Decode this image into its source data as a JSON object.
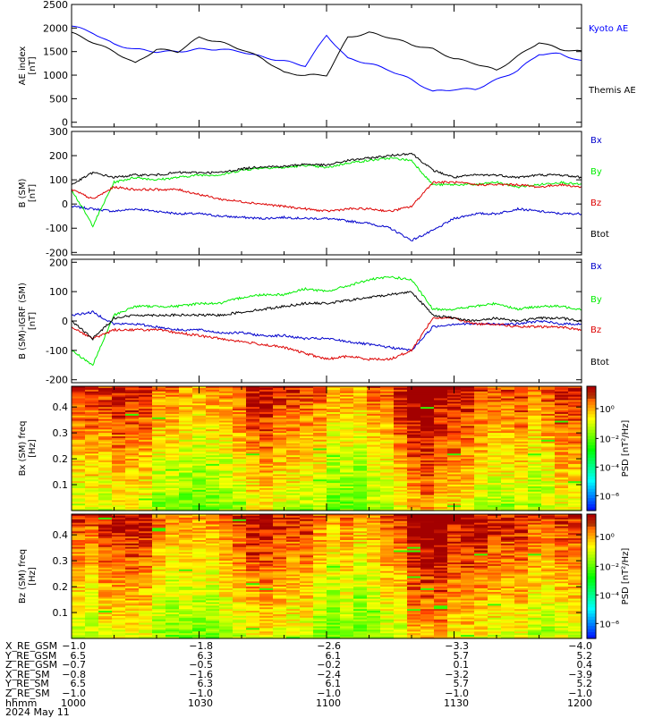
{
  "colors": {
    "kyoto": "#0000ff",
    "themis": "#000000",
    "bx": "#0000cc",
    "by": "#00ee00",
    "bz": "#dd0000",
    "btot": "#000000"
  },
  "chart_data": [
    {
      "type": "line",
      "ylabel": "AE index [nT]",
      "ylim": [
        -100,
        2500
      ],
      "yticks": [
        "0",
        "500",
        "1000",
        "1500",
        "2000",
        "2500"
      ],
      "grid": false,
      "legend_placement": "right",
      "x_time_range": [
        "2024-05-11 10:00",
        "2024-05-11 12:00"
      ],
      "series": [
        {
          "name": "Kyoto AE",
          "color": "#0000ff",
          "times": [
            "10:00",
            "10:05",
            "10:10",
            "10:15",
            "10:20",
            "10:25",
            "10:30",
            "10:35",
            "10:40",
            "10:45",
            "10:50",
            "10:55",
            "11:00",
            "11:05",
            "11:10",
            "11:15",
            "11:20",
            "11:25",
            "11:30",
            "11:35",
            "11:40",
            "11:45",
            "11:50",
            "11:55",
            "12:00"
          ],
          "values": [
            2050,
            1900,
            1650,
            1550,
            1500,
            1500,
            1550,
            1550,
            1500,
            1380,
            1300,
            1200,
            1850,
            1350,
            1250,
            1100,
            900,
            650,
            700,
            700,
            900,
            1100,
            1450,
            1450,
            1300
          ]
        },
        {
          "name": "Themis AE",
          "color": "#000000",
          "times": [
            "10:00",
            "10:05",
            "10:10",
            "10:15",
            "10:20",
            "10:25",
            "10:30",
            "10:35",
            "10:40",
            "10:45",
            "10:50",
            "10:55",
            "11:00",
            "11:05",
            "11:10",
            "11:15",
            "11:20",
            "11:25",
            "11:30",
            "11:35",
            "11:40",
            "11:45",
            "11:50",
            "11:55",
            "12:00"
          ],
          "values": [
            1900,
            1700,
            1500,
            1250,
            1550,
            1500,
            1800,
            1700,
            1550,
            1350,
            1050,
            1000,
            1000,
            1800,
            1900,
            1800,
            1650,
            1550,
            1350,
            1250,
            1100,
            1400,
            1700,
            1550,
            1500
          ]
        }
      ]
    },
    {
      "type": "line",
      "ylabel": "B (SM) [nT]",
      "ylim": [
        -210,
        300
      ],
      "yticks": [
        "-200",
        "-100",
        "0",
        "100",
        "200",
        "300"
      ],
      "grid": false,
      "legend_placement": "right",
      "x_time_range": [
        "2024-05-11 10:00",
        "2024-05-11 12:00"
      ],
      "series": [
        {
          "name": "Bx",
          "color": "#0000cc",
          "times": [
            "10:00",
            "10:05",
            "10:10",
            "10:15",
            "10:20",
            "10:25",
            "10:30",
            "10:35",
            "10:40",
            "10:45",
            "10:50",
            "10:55",
            "11:00",
            "11:05",
            "11:10",
            "11:15",
            "11:20",
            "11:25",
            "11:30",
            "11:35",
            "11:40",
            "11:45",
            "11:50",
            "11:55",
            "12:00"
          ],
          "values": [
            -10,
            -20,
            -30,
            -20,
            -30,
            -40,
            -40,
            -50,
            -55,
            -60,
            -55,
            -60,
            -60,
            -70,
            -80,
            -100,
            -150,
            -110,
            -60,
            -40,
            -40,
            -20,
            -30,
            -40,
            -40
          ]
        },
        {
          "name": "By",
          "color": "#00ee00",
          "times": [
            "10:00",
            "10:05",
            "10:10",
            "10:15",
            "10:20",
            "10:25",
            "10:30",
            "10:35",
            "10:40",
            "10:45",
            "10:50",
            "10:55",
            "11:00",
            "11:05",
            "11:10",
            "11:15",
            "11:20",
            "11:25",
            "11:30",
            "11:35",
            "11:40",
            "11:45",
            "11:50",
            "11:55",
            "12:00"
          ],
          "values": [
            60,
            -90,
            90,
            110,
            100,
            110,
            120,
            120,
            140,
            150,
            150,
            160,
            150,
            170,
            180,
            190,
            180,
            80,
            80,
            80,
            90,
            70,
            80,
            90,
            80
          ]
        },
        {
          "name": "Bz",
          "color": "#dd0000",
          "times": [
            "10:00",
            "10:05",
            "10:10",
            "10:15",
            "10:20",
            "10:25",
            "10:30",
            "10:35",
            "10:40",
            "10:45",
            "10:50",
            "10:55",
            "11:00",
            "11:05",
            "11:10",
            "11:15",
            "11:20",
            "11:25",
            "11:30",
            "11:35",
            "11:40",
            "11:45",
            "11:50",
            "11:55",
            "12:00"
          ],
          "values": [
            60,
            20,
            70,
            60,
            60,
            60,
            40,
            20,
            10,
            0,
            -10,
            -20,
            -30,
            -20,
            -20,
            -30,
            -10,
            90,
            90,
            80,
            80,
            80,
            70,
            80,
            70
          ]
        },
        {
          "name": "Btot",
          "color": "#000000",
          "times": [
            "10:00",
            "10:05",
            "10:10",
            "10:15",
            "10:20",
            "10:25",
            "10:30",
            "10:35",
            "10:40",
            "10:45",
            "10:50",
            "10:55",
            "11:00",
            "11:05",
            "11:10",
            "11:15",
            "11:20",
            "11:25",
            "11:30",
            "11:35",
            "11:40",
            "11:45",
            "11:50",
            "11:55",
            "12:00"
          ],
          "values": [
            80,
            130,
            110,
            120,
            120,
            130,
            130,
            130,
            145,
            155,
            155,
            165,
            160,
            180,
            190,
            200,
            210,
            140,
            110,
            120,
            120,
            110,
            120,
            120,
            110
          ]
        }
      ]
    },
    {
      "type": "line",
      "ylabel": "B (SM)-IGRF (SM) [nT]",
      "ylim": [
        -210,
        210
      ],
      "yticks": [
        "-200",
        "-100",
        "0",
        "100",
        "200"
      ],
      "grid": false,
      "legend_placement": "right",
      "x_time_range": [
        "2024-05-11 10:00",
        "2024-05-11 12:00"
      ],
      "series": [
        {
          "name": "Bx",
          "color": "#0000cc",
          "times": [
            "10:00",
            "10:05",
            "10:10",
            "10:15",
            "10:20",
            "10:25",
            "10:30",
            "10:35",
            "10:40",
            "10:45",
            "10:50",
            "10:55",
            "11:00",
            "11:05",
            "11:10",
            "11:15",
            "11:20",
            "11:25",
            "11:30",
            "11:35",
            "11:40",
            "11:45",
            "11:50",
            "11:55",
            "12:00"
          ],
          "values": [
            20,
            30,
            -10,
            -10,
            -20,
            -30,
            -30,
            -40,
            -40,
            -50,
            -50,
            -60,
            -60,
            -70,
            -80,
            -90,
            -100,
            -20,
            -10,
            -10,
            -10,
            -10,
            0,
            -10,
            -10
          ]
        },
        {
          "name": "By",
          "color": "#00ee00",
          "times": [
            "10:00",
            "10:05",
            "10:10",
            "10:15",
            "10:20",
            "10:25",
            "10:30",
            "10:35",
            "10:40",
            "10:45",
            "10:50",
            "10:55",
            "11:00",
            "11:05",
            "11:10",
            "11:15",
            "11:20",
            "11:25",
            "11:30",
            "11:35",
            "11:40",
            "11:45",
            "11:50",
            "11:55",
            "12:00"
          ],
          "values": [
            -100,
            -150,
            20,
            50,
            50,
            50,
            60,
            60,
            80,
            90,
            90,
            110,
            100,
            120,
            140,
            150,
            140,
            40,
            40,
            50,
            60,
            40,
            50,
            50,
            40
          ]
        },
        {
          "name": "Bz",
          "color": "#dd0000",
          "times": [
            "10:00",
            "10:05",
            "10:10",
            "10:15",
            "10:20",
            "10:25",
            "10:30",
            "10:35",
            "10:40",
            "10:45",
            "10:50",
            "10:55",
            "11:00",
            "11:05",
            "11:10",
            "11:15",
            "11:20",
            "11:25",
            "11:30",
            "11:35",
            "11:40",
            "11:45",
            "11:50",
            "11:55",
            "12:00"
          ],
          "values": [
            -20,
            -60,
            -30,
            -30,
            -30,
            -40,
            -50,
            -60,
            -70,
            -80,
            -90,
            -110,
            -130,
            -120,
            -130,
            -130,
            -100,
            10,
            10,
            -10,
            -10,
            -20,
            -20,
            -20,
            -30
          ]
        },
        {
          "name": "Btot",
          "color": "#000000",
          "times": [
            "10:00",
            "10:05",
            "10:10",
            "10:15",
            "10:20",
            "10:25",
            "10:30",
            "10:35",
            "10:40",
            "10:45",
            "10:50",
            "10:55",
            "11:00",
            "11:05",
            "11:10",
            "11:15",
            "11:20",
            "11:25",
            "11:30",
            "11:35",
            "11:40",
            "11:45",
            "11:50",
            "11:55",
            "12:00"
          ],
          "values": [
            0,
            -60,
            10,
            20,
            20,
            20,
            20,
            20,
            30,
            40,
            50,
            60,
            60,
            70,
            80,
            90,
            100,
            20,
            10,
            0,
            10,
            0,
            10,
            10,
            0
          ]
        }
      ]
    },
    {
      "type": "heatmap",
      "ylabel": "Bx (SM) freq [Hz]",
      "ylim": [
        0,
        0.48
      ],
      "yticks": [
        "0.1",
        "0.2",
        "0.3",
        "0.4"
      ],
      "colorbar_label": "PSD [nT²/Hz]",
      "colorbar_ticks": [
        "10⁰",
        "10⁻²",
        "10⁻⁴",
        "10⁻⁶"
      ],
      "x_time_range": [
        "2024-05-11 10:00",
        "2024-05-11 12:00"
      ]
    },
    {
      "type": "heatmap",
      "ylabel": "Bz (SM) freq [Hz]",
      "ylim": [
        0,
        0.48
      ],
      "yticks": [
        "0.1",
        "0.2",
        "0.3",
        "0.4"
      ],
      "colorbar_label": "PSD [nT²/Hz]",
      "colorbar_ticks": [
        "10⁰",
        "10⁻²",
        "10⁻⁴",
        "10⁻⁶"
      ],
      "x_time_range": [
        "2024-05-11 10:00",
        "2024-05-11 12:00"
      ]
    }
  ],
  "ephemeris": [
    {
      "label": "X_RE_GSM",
      "values": [
        "−1.0",
        "−1.8",
        "−2.6",
        "−3.3",
        "−4.0"
      ]
    },
    {
      "label": "Y_RE_GSM",
      "values": [
        "6.5",
        "6.3",
        "6.1",
        "5.7",
        "5.2"
      ]
    },
    {
      "label": "Z_RE_GSM",
      "values": [
        "−0.7",
        "−0.5",
        "−0.2",
        "0.1",
        "0.4"
      ]
    },
    {
      "label": "X_RE_SM",
      "values": [
        "−0.8",
        "−1.6",
        "−2.4",
        "−3.2",
        "−3.9"
      ]
    },
    {
      "label": "Y_RE_SM",
      "values": [
        "6.5",
        "6.3",
        "6.1",
        "5.7",
        "5.2"
      ]
    },
    {
      "label": "Z_RE_SM",
      "values": [
        "−1.0",
        "−1.0",
        "−1.0",
        "−1.0",
        "−1.0"
      ]
    },
    {
      "label": "hhmm",
      "values": [
        "1000",
        "1030",
        "1100",
        "1130",
        "1200"
      ]
    }
  ],
  "date_label": "2024 May 11"
}
